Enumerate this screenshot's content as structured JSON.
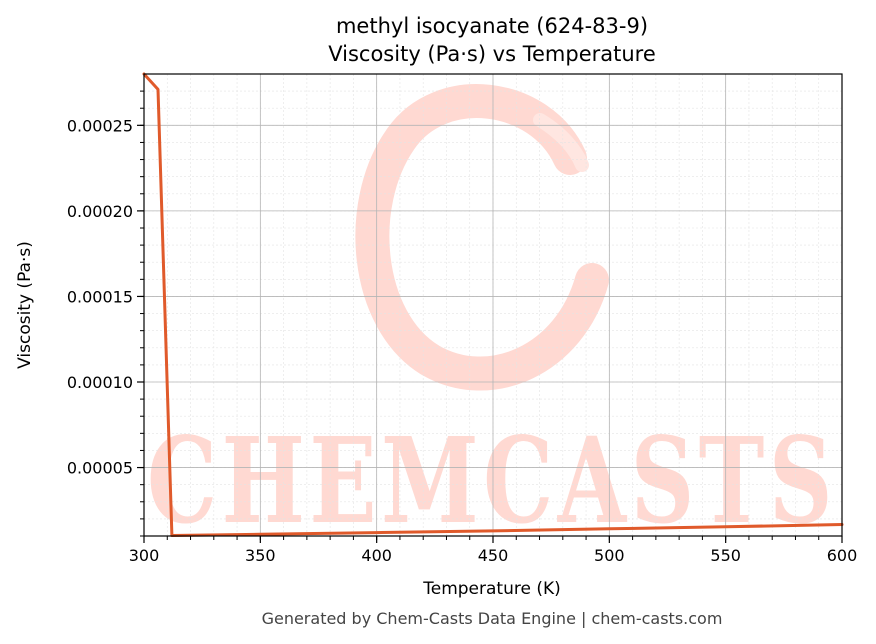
{
  "chart_data": {
    "type": "line",
    "title_line1": "methyl isocyanate (624-83-9)",
    "title_line2": "Viscosity (Pa·s) vs Temperature",
    "xlabel": "Temperature (K)",
    "ylabel": "Viscosity (Pa·s)",
    "xlim": [
      300,
      600
    ],
    "ylim": [
      1e-05,
      0.00028
    ],
    "x_ticks": [
      300,
      350,
      400,
      450,
      500,
      550,
      600
    ],
    "x_tick_labels": [
      "300",
      "350",
      "400",
      "450",
      "500",
      "550",
      "600"
    ],
    "y_ticks": [
      5e-05,
      0.0001,
      0.00015,
      0.0002,
      0.00025
    ],
    "y_tick_labels": [
      "0.00005",
      "0.00010",
      "0.00015",
      "0.00020",
      "0.00025"
    ],
    "grid": true,
    "line_color": "#e05a2b",
    "series": [
      {
        "x": [
          300,
          306,
          312,
          350,
          400,
          450,
          500,
          550,
          600
        ],
        "y": [
          0.00028,
          0.000271,
          1.03e-05,
          1.1e-05,
          1.2e-05,
          1.3e-05,
          1.42e-05,
          1.54e-05,
          1.67e-05
        ]
      }
    ]
  },
  "watermark": {
    "text": "CHEMCASTS",
    "color": "#ffd9d2"
  },
  "footer": "Generated by Chem-Casts Data Engine | chem-casts.com"
}
